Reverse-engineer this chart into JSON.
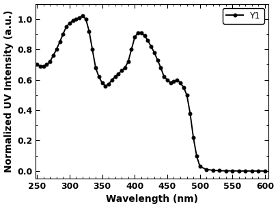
{
  "x": [
    250,
    255,
    260,
    265,
    270,
    275,
    280,
    285,
    290,
    295,
    300,
    305,
    310,
    315,
    320,
    325,
    330,
    335,
    340,
    345,
    350,
    355,
    360,
    365,
    370,
    375,
    380,
    385,
    390,
    395,
    400,
    405,
    410,
    415,
    420,
    425,
    430,
    435,
    440,
    445,
    450,
    455,
    460,
    465,
    470,
    475,
    480,
    485,
    490,
    495,
    500,
    510,
    520,
    530,
    540,
    550,
    560,
    570,
    580,
    590,
    600
  ],
  "y": [
    0.7,
    0.69,
    0.69,
    0.7,
    0.72,
    0.76,
    0.8,
    0.85,
    0.9,
    0.95,
    0.97,
    0.99,
    1.0,
    1.01,
    1.02,
    1.0,
    0.92,
    0.8,
    0.68,
    0.62,
    0.58,
    0.56,
    0.57,
    0.6,
    0.62,
    0.64,
    0.66,
    0.68,
    0.72,
    0.8,
    0.88,
    0.91,
    0.91,
    0.89,
    0.86,
    0.82,
    0.78,
    0.73,
    0.68,
    0.62,
    0.6,
    0.58,
    0.59,
    0.6,
    0.58,
    0.55,
    0.5,
    0.38,
    0.22,
    0.1,
    0.03,
    0.01,
    0.005,
    0.002,
    0.001,
    0.001,
    0.0,
    0.0,
    0.0,
    0.0,
    0.0
  ],
  "marker_x": [
    250,
    260,
    270,
    280,
    290,
    300,
    310,
    320,
    330,
    340,
    350,
    360,
    370,
    380,
    390,
    400,
    410,
    420,
    430,
    440,
    450,
    460,
    470,
    480,
    490,
    500,
    520,
    540,
    560,
    580,
    600
  ],
  "marker_y": [
    0.7,
    0.69,
    0.72,
    0.8,
    0.9,
    0.97,
    1.0,
    1.02,
    0.92,
    0.68,
    0.58,
    0.57,
    0.62,
    0.66,
    0.72,
    0.88,
    0.91,
    0.86,
    0.78,
    0.68,
    0.6,
    0.59,
    0.58,
    0.5,
    0.22,
    0.03,
    0.01,
    0.002,
    0.001,
    0.0,
    0.0
  ],
  "line_color": "#000000",
  "marker_color": "#000000",
  "xlabel": "Wavelength (nm)",
  "ylabel": "Normalized UV Intensity (a.u.)",
  "xlim": [
    248,
    605
  ],
  "ylim": [
    -0.05,
    1.1
  ],
  "xticks": [
    250,
    300,
    350,
    400,
    450,
    500,
    550,
    600
  ],
  "yticks": [
    0.0,
    0.2,
    0.4,
    0.6,
    0.8,
    1.0
  ],
  "legend_label": "Y1",
  "marker_style": "o",
  "marker_size": 3.5,
  "line_width": 1.4,
  "font_size_label": 10,
  "font_size_tick": 9,
  "font_size_legend": 9
}
